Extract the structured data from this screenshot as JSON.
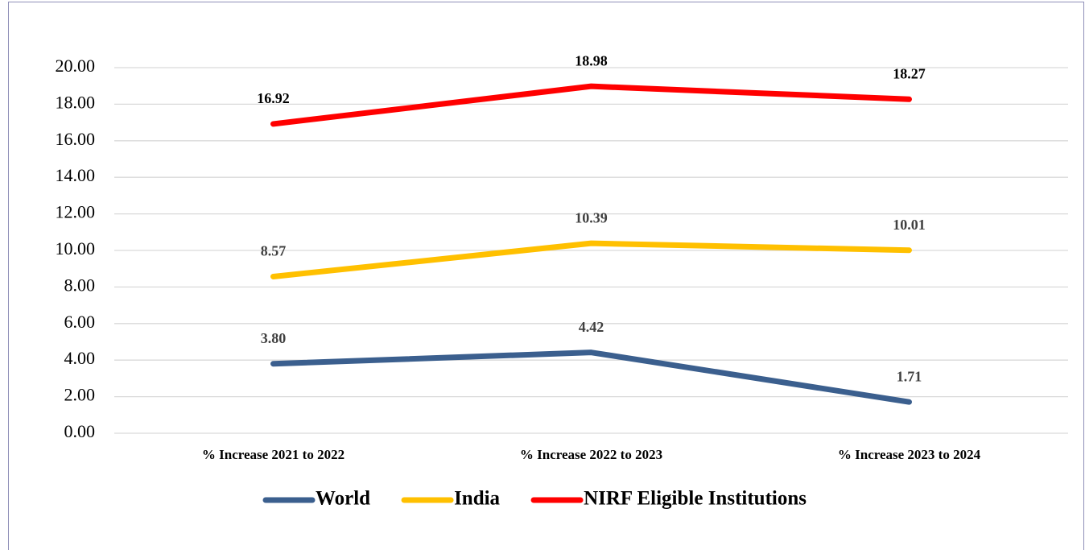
{
  "chart_data": {
    "type": "line",
    "categories": [
      "% Increase 2021 to 2022",
      "% Increase 2022 to 2023",
      "% Increase 2023 to 2024"
    ],
    "series": [
      {
        "name": "World",
        "color": "#3b5f8e",
        "values": [
          3.8,
          4.42,
          1.71
        ],
        "value_labels": [
          "3.80",
          "4.42",
          "1.71"
        ]
      },
      {
        "name": "India",
        "color": "#ffc000",
        "values": [
          8.57,
          10.39,
          10.01
        ]
      },
      {
        "name": "NIRF Eligible Institutions",
        "color": "#ff0000",
        "values": [
          16.92,
          18.98,
          18.27
        ]
      }
    ],
    "ylim": [
      0,
      20
    ],
    "yticks": [
      {
        "value": 0,
        "label": "0.00"
      },
      {
        "value": 2,
        "label": "2.00"
      },
      {
        "value": 4,
        "label": "4.00"
      },
      {
        "value": 6,
        "label": "6.00"
      },
      {
        "value": 8,
        "label": "8.00"
      },
      {
        "value": 10,
        "label": "10.00"
      },
      {
        "value": 12,
        "label": "12.00"
      },
      {
        "value": 14,
        "label": "14.00"
      },
      {
        "value": 16,
        "label": "16.00"
      },
      {
        "value": 18,
        "label": "18.00"
      },
      {
        "value": 20,
        "label": "20.00"
      }
    ],
    "grid": true,
    "legend": "bottom"
  }
}
